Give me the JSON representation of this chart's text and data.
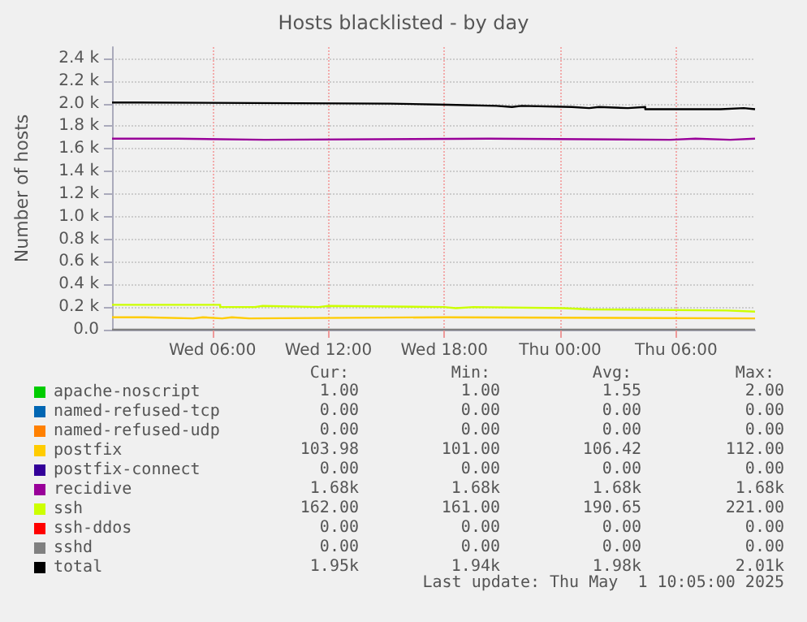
{
  "chart_data": {
    "type": "step",
    "title": "Hosts blacklisted - by day",
    "ylabel": "Number of hosts",
    "xlim": [
      "2025-04-30T00:48",
      "2025-05-01T10:05"
    ],
    "xticks": [
      {
        "value": "2025-04-30T06:00",
        "label": "Wed 06:00"
      },
      {
        "value": "2025-04-30T12:00",
        "label": "Wed 12:00"
      },
      {
        "value": "2025-04-30T18:00",
        "label": "Wed 18:00"
      },
      {
        "value": "2025-05-01T00:00",
        "label": "Thu 00:00"
      },
      {
        "value": "2025-05-01T06:00",
        "label": "Thu 06:00"
      }
    ],
    "ylim": [
      0,
      2500
    ],
    "yticks": [
      {
        "value": 0,
        "label": "0.0"
      },
      {
        "value": 200,
        "label": "0.2 k"
      },
      {
        "value": 400,
        "label": "0.4 k"
      },
      {
        "value": 600,
        "label": "0.6 k"
      },
      {
        "value": 800,
        "label": "0.8 k"
      },
      {
        "value": 1000,
        "label": "1.0 k"
      },
      {
        "value": 1200,
        "label": "1.2 k"
      },
      {
        "value": 1400,
        "label": "1.4 k"
      },
      {
        "value": 1600,
        "label": "1.6 k"
      },
      {
        "value": 1800,
        "label": "1.8 k"
      },
      {
        "value": 2000,
        "label": "2.0 k"
      },
      {
        "value": 2200,
        "label": "2.2 k"
      },
      {
        "value": 2400,
        "label": "2.4 k"
      }
    ],
    "grid": true,
    "legend": "bottom",
    "series": [
      {
        "name": "apache-noscript",
        "color": "#00cc00"
      },
      {
        "name": "named-refused-tcp",
        "color": "#0066b3"
      },
      {
        "name": "named-refused-udp",
        "color": "#ff8000"
      },
      {
        "name": "postfix",
        "color": "#ffcc00",
        "x": [
          "2025-04-30T00:48",
          "2025-04-30T02:30",
          "2025-04-30T05:00",
          "2025-04-30T05:30",
          "2025-04-30T06:30",
          "2025-04-30T07:00",
          "2025-04-30T07:54",
          "2025-04-30T18:06",
          "2025-05-01T10:05"
        ],
        "values": [
          110,
          100,
          110,
          100,
          110,
          100,
          110,
          100,
          100
        ]
      },
      {
        "name": "postfix-connect",
        "color": "#330099"
      },
      {
        "name": "recidive",
        "color": "#990099",
        "x": [
          "2025-04-30T00:48",
          "2025-04-30T04:12",
          "2025-04-30T08:42",
          "2025-04-30T20:18",
          "2025-05-01T05:42",
          "2025-05-01T07:00",
          "2025-05-01T08:48",
          "2025-05-01T10:05"
        ],
        "values": [
          1690,
          1680,
          1690,
          1680,
          1690,
          1680,
          1690,
          1690
        ]
      },
      {
        "name": "ssh",
        "color": "#ccff00",
        "x": [
          "2025-04-30T00:48",
          "2025-04-30T06:24",
          "2025-04-30T08:12",
          "2025-04-30T08:36",
          "2025-04-30T11:30",
          "2025-04-30T12:00",
          "2025-04-30T18:00",
          "2025-04-30T18:36",
          "2025-04-30T19:30",
          "2025-05-01T00:12",
          "2025-05-01T01:30",
          "2025-05-01T08:36",
          "2025-05-01T10:05"
        ],
        "values": [
          220,
          200,
          210,
          200,
          210,
          200,
          190,
          200,
          190,
          180,
          170,
          160,
          160
        ]
      },
      {
        "name": "ssh-ddos",
        "color": "#ff0000"
      },
      {
        "name": "sshd",
        "color": "#808080",
        "x": [
          "2025-04-30T00:48",
          "2025-05-01T10:05"
        ],
        "values": [
          0,
          0
        ]
      },
      {
        "name": "total",
        "color": "#000000",
        "x": [
          "2025-04-30T00:48",
          "2025-04-30T02:12",
          "2025-04-30T15:12",
          "2025-04-30T18:12",
          "2025-04-30T20:42",
          "2025-04-30T21:30",
          "2025-04-30T22:00",
          "2025-05-01T00:36",
          "2025-05-01T01:30",
          "2025-05-01T02:00",
          "2025-05-01T03:30",
          "2025-05-01T04:24",
          "2025-05-01T08:18",
          "2025-05-01T09:30",
          "2025-05-01T10:05"
        ],
        "values": [
          2010,
          2000,
          1990,
          1980,
          1970,
          1980,
          1970,
          1960,
          1970,
          1960,
          1970,
          1950,
          1960,
          1950,
          1950
        ]
      }
    ],
    "annotations": [
      "Cur:",
      "Min:",
      "Avg:",
      "Max:",
      "1.00",
      "1.00",
      "1.55",
      "2.00",
      "0.00",
      "0.00",
      "0.00",
      "0.00",
      "0.00",
      "0.00",
      "0.00",
      "0.00",
      "103.98",
      "101.00",
      "106.42",
      "112.00",
      "0.00",
      "0.00",
      "0.00",
      "0.00",
      "1.68k",
      "1.68k",
      "1.68k",
      "1.68k",
      "162.00",
      "161.00",
      "190.65",
      "221.00",
      "0.00",
      "0.00",
      "0.00",
      "0.00",
      "0.00",
      "0.00",
      "0.00",
      "0.00",
      "1.95k",
      "1.94k",
      "1.98k",
      "2.01k",
      "Last update: Thu May  1 10:05:00 2025"
    ]
  }
}
